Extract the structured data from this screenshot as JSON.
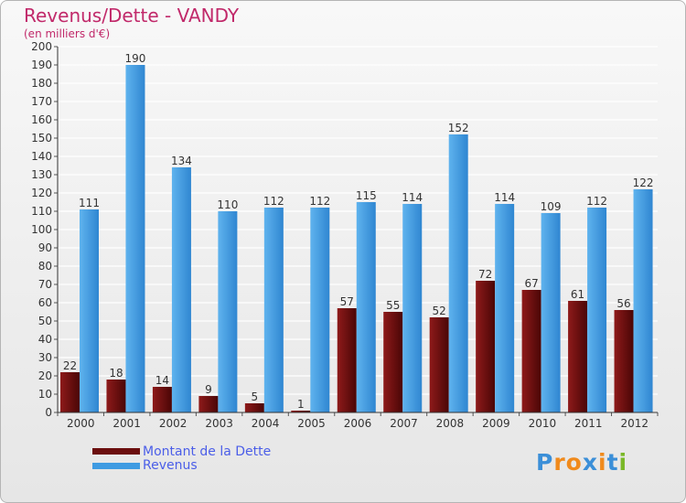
{
  "header": {
    "title": "Revenus/Dette - VANDY",
    "subtitle": "(en milliers d'€)"
  },
  "chart_data": {
    "type": "bar",
    "categories": [
      "2000",
      "2001",
      "2002",
      "2003",
      "2004",
      "2005",
      "2006",
      "2007",
      "2008",
      "2009",
      "2010",
      "2011",
      "2012"
    ],
    "series": [
      {
        "name": "Montant de la Dette",
        "values": [
          22,
          18,
          14,
          9,
          5,
          1,
          57,
          55,
          52,
          72,
          67,
          61,
          56
        ],
        "color": "#7a1212"
      },
      {
        "name": "Revenus",
        "values": [
          111,
          190,
          134,
          110,
          112,
          112,
          115,
          114,
          152,
          114,
          109,
          112,
          122
        ],
        "color": "#4aa3e6"
      }
    ],
    "yticks": [
      0,
      10,
      20,
      30,
      40,
      50,
      60,
      70,
      80,
      90,
      100,
      110,
      120,
      130,
      140,
      150,
      160,
      170,
      180,
      190,
      200
    ],
    "ylim": [
      0,
      200
    ],
    "grid": true,
    "legend_position": "bottom-left"
  },
  "legend": {
    "items": [
      {
        "label": "Montant de la Dette",
        "color": "#6b0e0e"
      },
      {
        "label": "Revenus",
        "color": "#3f9be2"
      }
    ]
  },
  "logo": {
    "text": "Proxiti"
  },
  "colors": {
    "title": "#c1296a",
    "legend_text": "#4b5ee8",
    "axis_text": "#333333"
  }
}
